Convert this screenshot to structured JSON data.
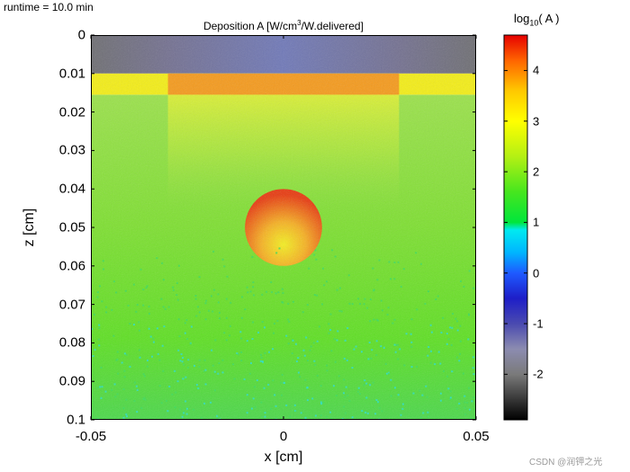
{
  "runtime_text": "runtime = 10.0 min",
  "watermark": "CSDN @润钾之光",
  "chart_data": {
    "type": "heatmap",
    "title_main": "Deposition A [W/cm",
    "title_sup": "3",
    "title_tail": "/W.delivered]",
    "xlabel": "x [cm]",
    "ylabel": "z [cm]",
    "xlim": [
      -0.05,
      0.05
    ],
    "ylim": [
      0,
      0.1
    ],
    "y_reversed": true,
    "x_ticks": [
      "-0.05",
      "0",
      "0.05"
    ],
    "y_ticks": [
      "0",
      "0.01",
      "0.02",
      "0.03",
      "0.04",
      "0.05",
      "0.06",
      "0.07",
      "0.08",
      "0.09",
      "0.1"
    ],
    "colorbar": {
      "label_main": "log",
      "label_sub": "10",
      "label_tail": "( A )",
      "range": [
        -2.9,
        4.7
      ],
      "ticks": [
        "-2",
        "-1",
        "0",
        "1",
        "2",
        "3",
        "4"
      ],
      "colormap": "gray-blue-cyan-green-yellow-red"
    },
    "regions": [
      {
        "name": "air layer",
        "z": [
          0,
          0.01
        ],
        "x": [
          -0.05,
          0.05
        ],
        "log10_value": -1.8
      },
      {
        "name": "surface layer",
        "z": [
          0.01,
          0.0155
        ],
        "x": [
          -0.05,
          0.05
        ],
        "log10_value": 3.0
      },
      {
        "name": "beam region in surface layer",
        "z": [
          0.01,
          0.0155
        ],
        "x": [
          -0.03,
          0.03
        ],
        "log10_value": 3.9
      },
      {
        "name": "tissue",
        "z": [
          0.0155,
          0.1
        ],
        "x": [
          -0.05,
          0.05
        ],
        "log10_value": 1.6
      },
      {
        "name": "sphere",
        "center": [
          0,
          0.05
        ],
        "radius": 0.01,
        "log10_value": 3.5
      }
    ]
  }
}
